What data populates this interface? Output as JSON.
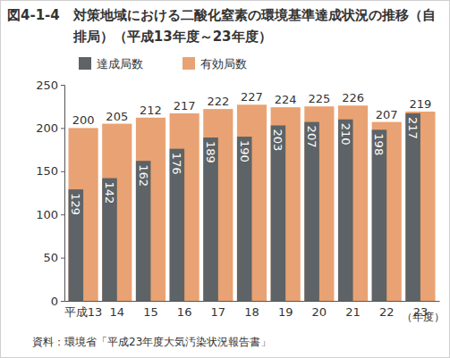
{
  "chart_data": {
    "type": "bar",
    "title": "図4-1-4　対策地域における二酸化窒素の環境基準達成状況の推移（自排局）（平成13年度～23年度）",
    "categories": [
      "平成13",
      "14",
      "15",
      "16",
      "17",
      "18",
      "19",
      "20",
      "21",
      "22",
      "23"
    ],
    "series": [
      {
        "name": "達成局数",
        "color": "#5d6366",
        "values": [
          129,
          142,
          162,
          176,
          189,
          190,
          203,
          207,
          210,
          198,
          217
        ]
      },
      {
        "name": "有効局数",
        "color": "#e9a273",
        "values": [
          200,
          205,
          212,
          217,
          222,
          227,
          224,
          225,
          226,
          207,
          219
        ]
      }
    ],
    "xlabel": "（年度）",
    "ylim": [
      0,
      250
    ],
    "yticks": [
      0,
      50,
      100,
      150,
      200,
      250
    ],
    "grid": false,
    "legend": "top-left",
    "data_labels": true,
    "annotations": [
      "資料：環境省「平成23年度大気汚染状況報告書」"
    ]
  }
}
